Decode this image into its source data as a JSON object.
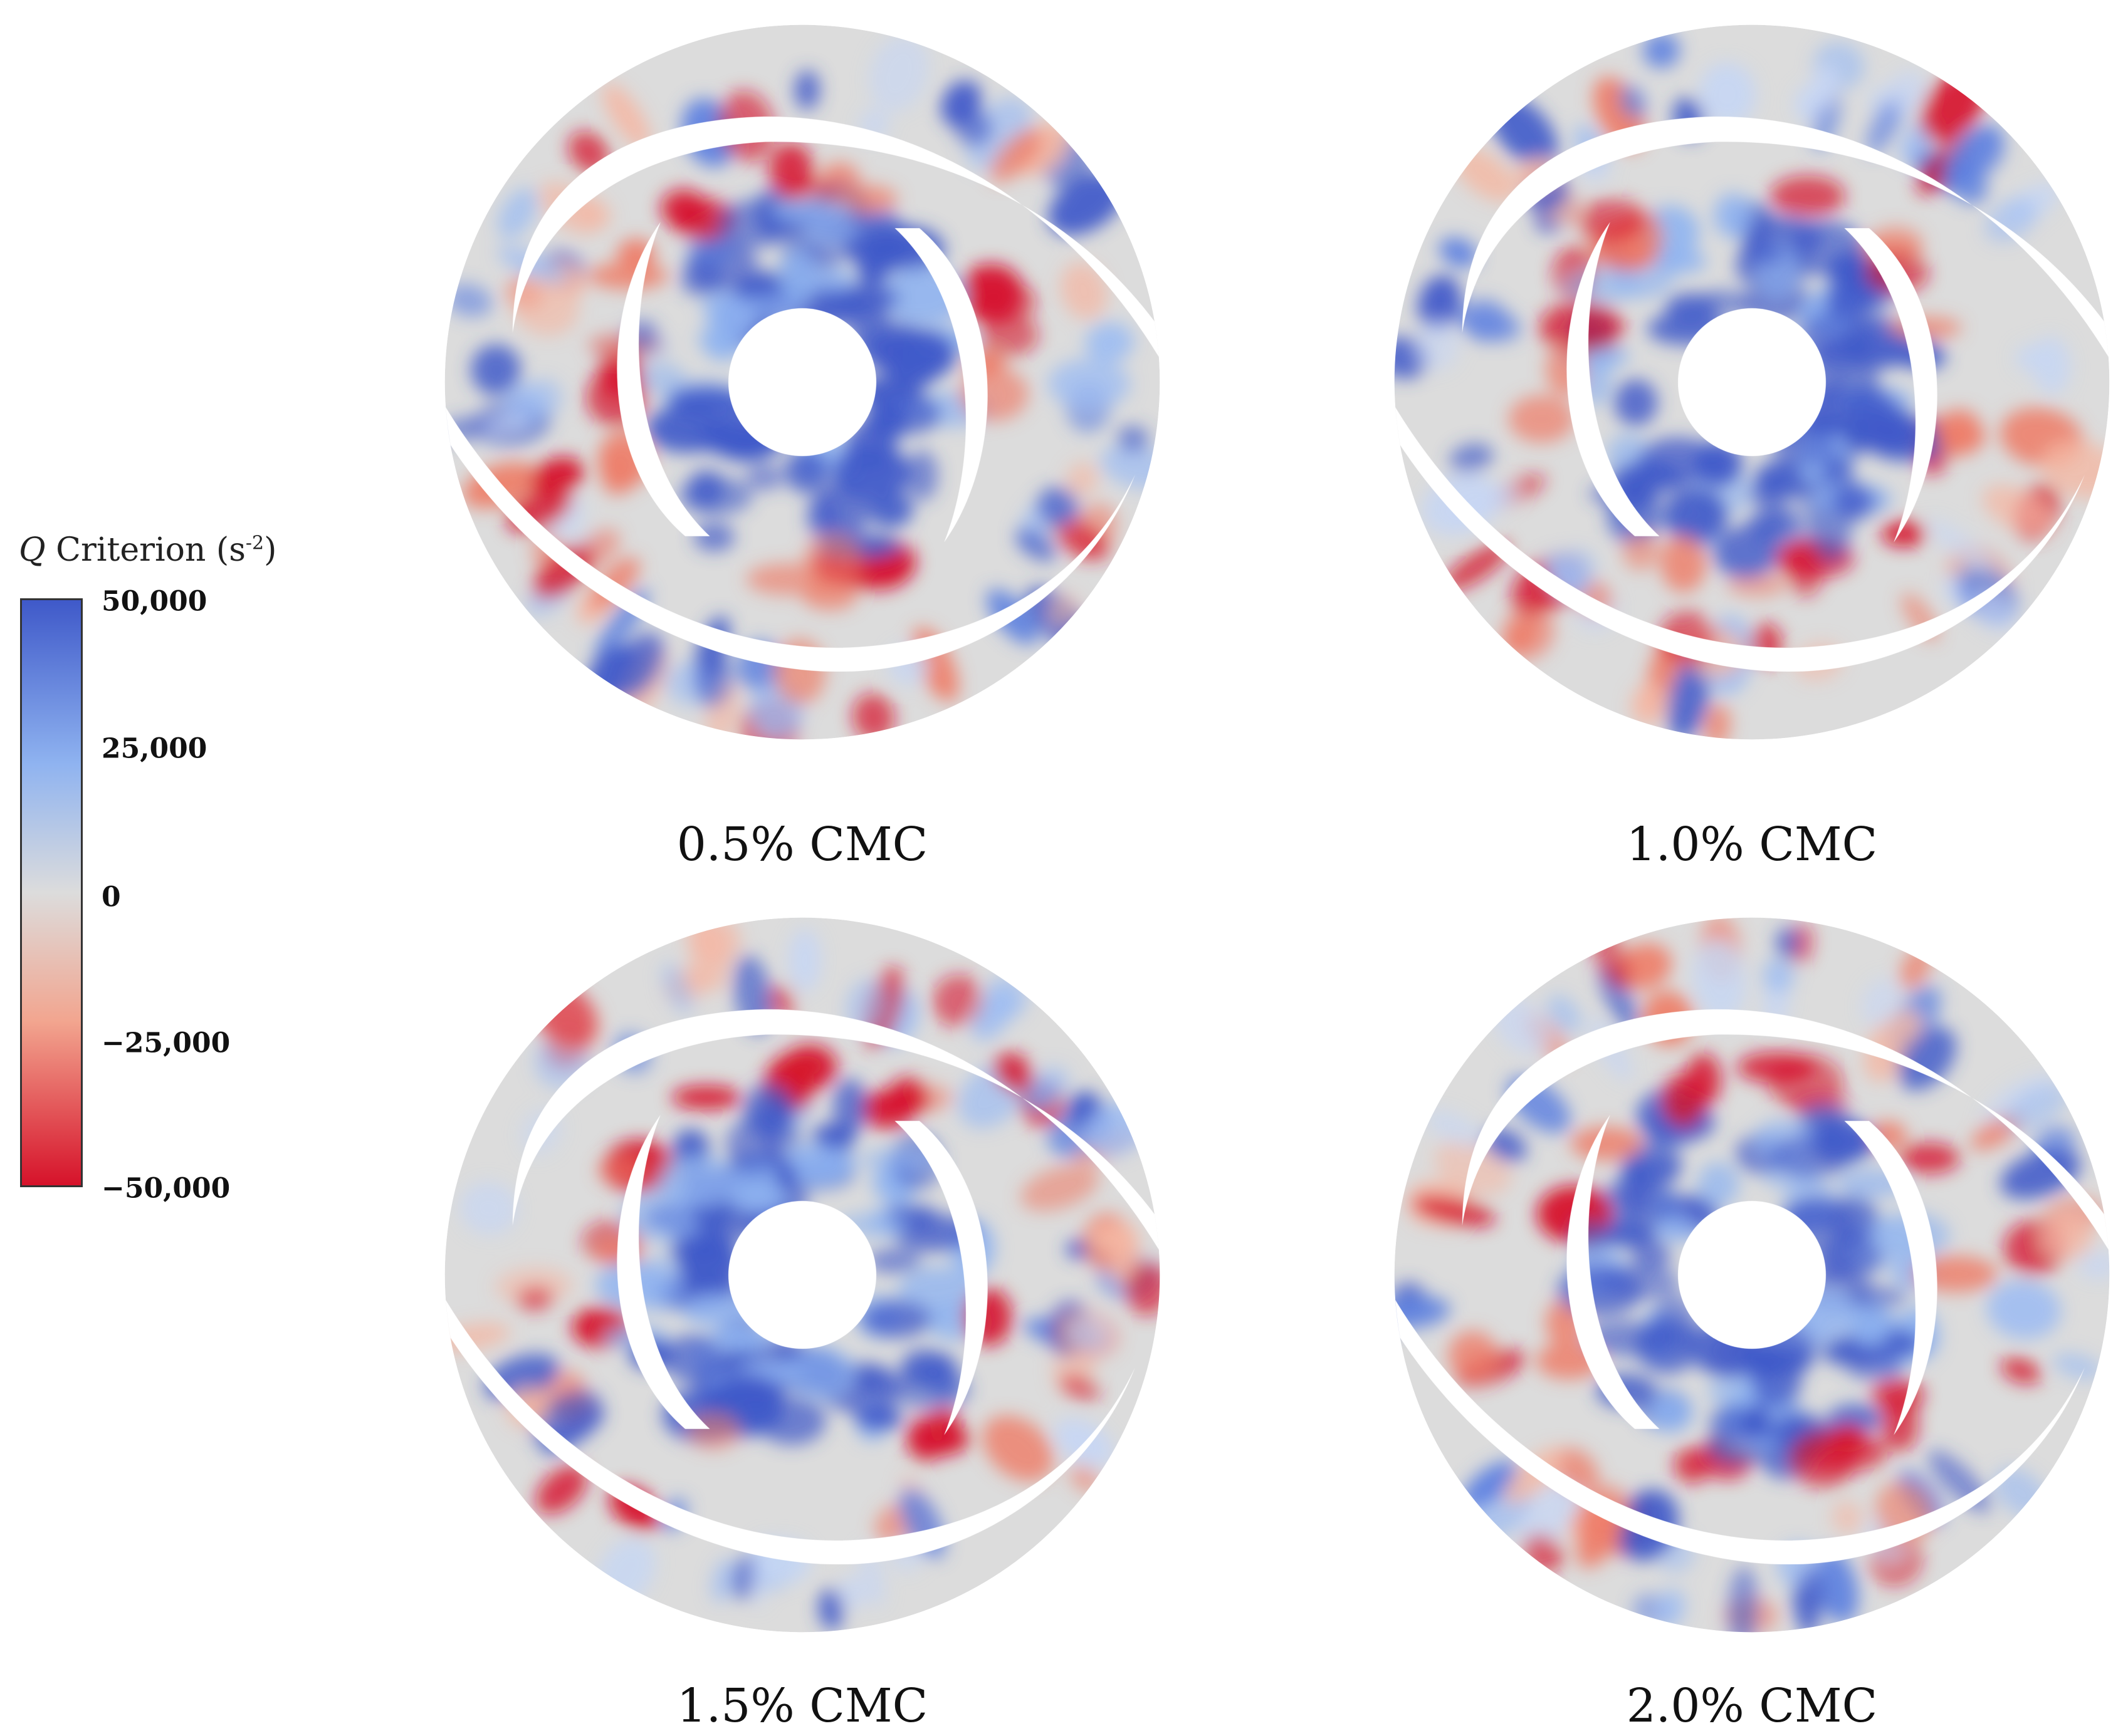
{
  "legend": {
    "title_symbol": "Q",
    "title_text": " Criterion (s",
    "title_exponent": "-2",
    "title_close": ")",
    "ticks": [
      "50,000",
      "25,000",
      "0",
      "−25,000",
      "−50,000"
    ],
    "colors": {
      "max": "#3f59c9",
      "mid": "#dcdcdc",
      "min": "#d6122a"
    }
  },
  "panels": [
    {
      "caption": "0.5% CMC"
    },
    {
      "caption": "1.0% CMC"
    },
    {
      "caption": "1.5% CMC"
    },
    {
      "caption": "2.0% CMC"
    }
  ]
}
